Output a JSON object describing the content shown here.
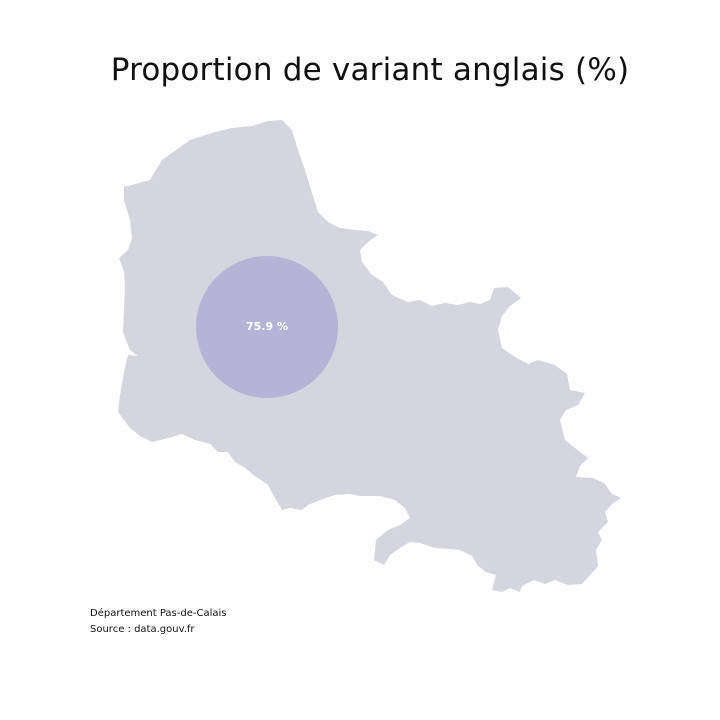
{
  "title": "Proportion de variant anglais (%)",
  "map": {
    "region": "Département Pas-de-Calais",
    "fill_color": "#d5d5df",
    "bubble": {
      "label": "75.9 %",
      "value": 75.9,
      "unit": "%",
      "color": "#aeaed6",
      "label_color": "#ffffff"
    }
  },
  "footer": {
    "line1": "Département Pas-de-Calais",
    "line2": "Source : data.gouv.fr"
  }
}
